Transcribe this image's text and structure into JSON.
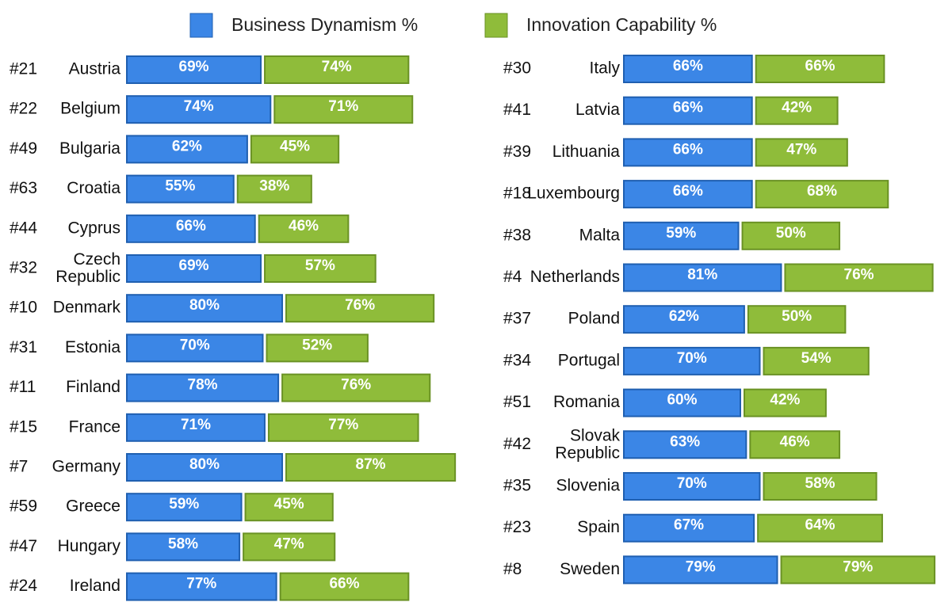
{
  "chart_data": {
    "type": "bar",
    "ranks": [
      "#21",
      "#22",
      "#49",
      "#63",
      "#44",
      "#32",
      "#10",
      "#31",
      "#11",
      "#15",
      "#7",
      "#59",
      "#47",
      "#24",
      "#30",
      "#41",
      "#39",
      "#18",
      "#38",
      "#4",
      "#37",
      "#34",
      "#51",
      "#42",
      "#35",
      "#23",
      "#8"
    ],
    "categories": [
      "Austria",
      "Belgium",
      "Bulgaria",
      "Croatia",
      "Cyprus",
      "Czech Republic",
      "Denmark",
      "Estonia",
      "Finland",
      "France",
      "Germany",
      "Greece",
      "Hungary",
      "Ireland",
      "Italy",
      "Latvia",
      "Lithuania",
      "Luxembourg",
      "Malta",
      "Netherlands",
      "Poland",
      "Portugal",
      "Romania",
      "Slovak Republic",
      "Slovenia",
      "Spain",
      "Sweden"
    ],
    "series": [
      {
        "name": "Business Dynamism %",
        "color": "#3b86e6",
        "values": [
          69,
          74,
          62,
          55,
          66,
          69,
          80,
          70,
          78,
          71,
          80,
          59,
          58,
          77,
          66,
          66,
          66,
          66,
          59,
          81,
          62,
          70,
          60,
          63,
          70,
          67,
          79
        ],
        "value_labels": [
          "69%",
          "74%",
          "62%",
          "55%",
          "66%",
          "69%",
          "80%",
          "70%",
          "78%",
          "71%",
          "80%",
          "59%",
          "58%",
          "77%",
          "66%",
          "66%",
          "66%",
          "66%",
          "59%",
          "81%",
          "62%",
          "70%",
          "60%",
          "63%",
          "70%",
          "67%",
          "79%"
        ]
      },
      {
        "name": "Innovation Capability %",
        "color": "#8fbc3a",
        "values": [
          74,
          71,
          45,
          38,
          46,
          57,
          76,
          52,
          76,
          77,
          87,
          45,
          47,
          66,
          66,
          42,
          47,
          68,
          50,
          76,
          50,
          54,
          42,
          46,
          58,
          64,
          79
        ],
        "value_labels": [
          "74%",
          "71%",
          "45%",
          "38%",
          "46%",
          "57%",
          "76%",
          "52%",
          "76%",
          "77%",
          "87%",
          "45%",
          "47%",
          "66%",
          "66%",
          "42%",
          "47%",
          "68%",
          "50%",
          "76%",
          "50%",
          "54%",
          "42%",
          "46%",
          "58%",
          "64%",
          "79%"
        ]
      }
    ]
  }
}
